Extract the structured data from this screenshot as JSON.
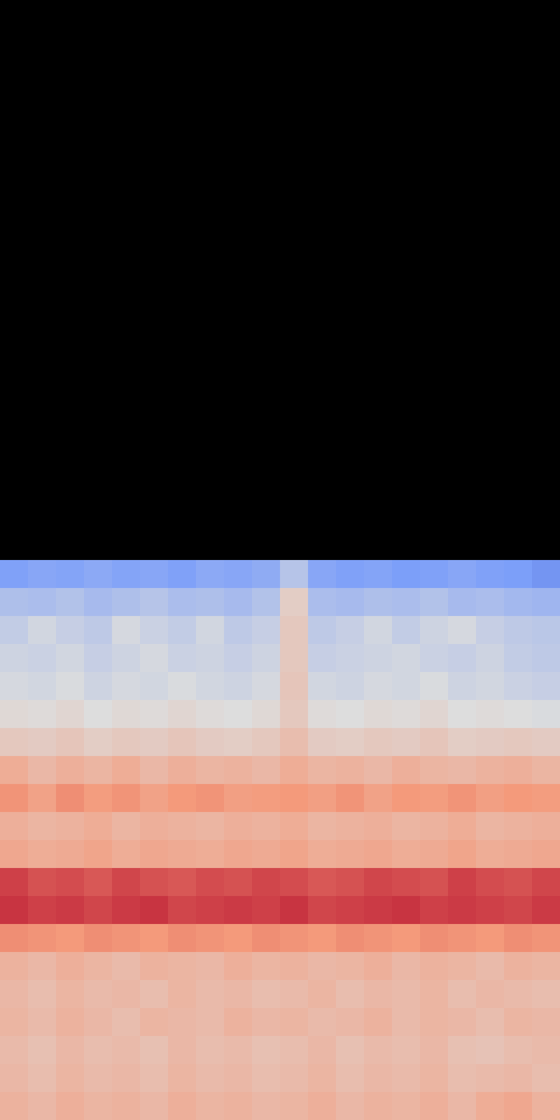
{
  "chart_data": {
    "type": "heatmap",
    "tick_labels": false,
    "zlim": [
      0,
      1
    ],
    "cells": [
      [
        0.26,
        0.28,
        0.27,
        0.29,
        0.27,
        0.28,
        0.26,
        0.29,
        0.28,
        0.3,
        0.4,
        0.28,
        0.26,
        0.27,
        0.25,
        0.26,
        0.28,
        0.26,
        0.25,
        0.22
      ],
      [
        0.38,
        0.37,
        0.39,
        0.36,
        0.38,
        0.4,
        0.37,
        0.38,
        0.36,
        0.39,
        0.56,
        0.37,
        0.36,
        0.38,
        0.37,
        0.39,
        0.36,
        0.37,
        0.35,
        0.34
      ],
      [
        0.43,
        0.47,
        0.44,
        0.42,
        0.48,
        0.45,
        0.43,
        0.47,
        0.42,
        0.44,
        0.58,
        0.42,
        0.44,
        0.47,
        0.43,
        0.46,
        0.48,
        0.44,
        0.42,
        0.41
      ],
      [
        0.46,
        0.45,
        0.47,
        0.44,
        0.46,
        0.48,
        0.45,
        0.46,
        0.44,
        0.46,
        0.58,
        0.44,
        0.45,
        0.46,
        0.47,
        0.45,
        0.44,
        0.46,
        0.43,
        0.42
      ],
      [
        0.48,
        0.47,
        0.49,
        0.46,
        0.48,
        0.47,
        0.49,
        0.47,
        0.46,
        0.48,
        0.59,
        0.47,
        0.46,
        0.48,
        0.47,
        0.49,
        0.46,
        0.47,
        0.45,
        0.44
      ],
      [
        0.52,
        0.51,
        0.53,
        0.5,
        0.52,
        0.51,
        0.53,
        0.51,
        0.5,
        0.52,
        0.58,
        0.51,
        0.5,
        0.52,
        0.51,
        0.53,
        0.5,
        0.51,
        0.5,
        0.49
      ],
      [
        0.58,
        0.57,
        0.59,
        0.56,
        0.58,
        0.57,
        0.59,
        0.57,
        0.56,
        0.58,
        0.62,
        0.57,
        0.56,
        0.58,
        0.57,
        0.59,
        0.56,
        0.57,
        0.58,
        0.57
      ],
      [
        0.68,
        0.64,
        0.67,
        0.65,
        0.68,
        0.64,
        0.67,
        0.65,
        0.66,
        0.64,
        0.68,
        0.65,
        0.66,
        0.64,
        0.67,
        0.65,
        0.64,
        0.66,
        0.67,
        0.65
      ],
      [
        0.76,
        0.72,
        0.77,
        0.74,
        0.76,
        0.72,
        0.75,
        0.76,
        0.73,
        0.74,
        0.75,
        0.73,
        0.76,
        0.72,
        0.75,
        0.74,
        0.76,
        0.73,
        0.75,
        0.74
      ],
      [
        0.67,
        0.65,
        0.66,
        0.68,
        0.65,
        0.67,
        0.66,
        0.65,
        0.67,
        0.66,
        0.68,
        0.65,
        0.66,
        0.67,
        0.65,
        0.66,
        0.68,
        0.65,
        0.66,
        0.67
      ],
      [
        0.7,
        0.68,
        0.69,
        0.71,
        0.68,
        0.7,
        0.69,
        0.68,
        0.7,
        0.69,
        0.71,
        0.68,
        0.69,
        0.7,
        0.68,
        0.69,
        0.71,
        0.68,
        0.69,
        0.7
      ],
      [
        0.9,
        0.87,
        0.88,
        0.86,
        0.89,
        0.87,
        0.86,
        0.88,
        0.87,
        0.89,
        0.88,
        0.86,
        0.87,
        0.89,
        0.88,
        0.87,
        0.9,
        0.88,
        0.87,
        0.89
      ],
      [
        0.92,
        0.9,
        0.91,
        0.89,
        0.91,
        0.92,
        0.89,
        0.9,
        0.91,
        0.9,
        0.92,
        0.89,
        0.9,
        0.91,
        0.92,
        0.9,
        0.91,
        0.9,
        0.89,
        0.91
      ],
      [
        0.77,
        0.76,
        0.75,
        0.77,
        0.76,
        0.75,
        0.77,
        0.76,
        0.75,
        0.77,
        0.76,
        0.75,
        0.77,
        0.76,
        0.75,
        0.77,
        0.76,
        0.75,
        0.77,
        0.76
      ],
      [
        0.66,
        0.64,
        0.67,
        0.65,
        0.63,
        0.66,
        0.65,
        0.64,
        0.67,
        0.65,
        0.66,
        0.64,
        0.65,
        0.67,
        0.64,
        0.66,
        0.65,
        0.63,
        0.66,
        0.65
      ],
      [
        0.64,
        0.62,
        0.65,
        0.63,
        0.64,
        0.62,
        0.65,
        0.63,
        0.64,
        0.62,
        0.63,
        0.65,
        0.62,
        0.64,
        0.63,
        0.65,
        0.62,
        0.64,
        0.63,
        0.62
      ],
      [
        0.65,
        0.63,
        0.66,
        0.64,
        0.62,
        0.65,
        0.64,
        0.63,
        0.66,
        0.64,
        0.65,
        0.63,
        0.64,
        0.66,
        0.63,
        0.65,
        0.64,
        0.62,
        0.65,
        0.64
      ],
      [
        0.63,
        0.61,
        0.64,
        0.62,
        0.63,
        0.61,
        0.64,
        0.62,
        0.63,
        0.61,
        0.62,
        0.64,
        0.61,
        0.63,
        0.62,
        0.64,
        0.61,
        0.6,
        0.62,
        0.63
      ],
      [
        0.64,
        0.62,
        0.65,
        0.63,
        0.64,
        0.62,
        0.65,
        0.63,
        0.64,
        0.62,
        0.63,
        0.65,
        0.62,
        0.64,
        0.63,
        0.65,
        0.62,
        0.63,
        0.64,
        0.62
      ],
      [
        0.66,
        0.64,
        0.67,
        0.65,
        0.66,
        0.64,
        0.67,
        0.65,
        0.66,
        0.64,
        0.65,
        0.67,
        0.64,
        0.66,
        0.65,
        0.67,
        0.64,
        0.68,
        0.7,
        0.66
      ]
    ]
  }
}
